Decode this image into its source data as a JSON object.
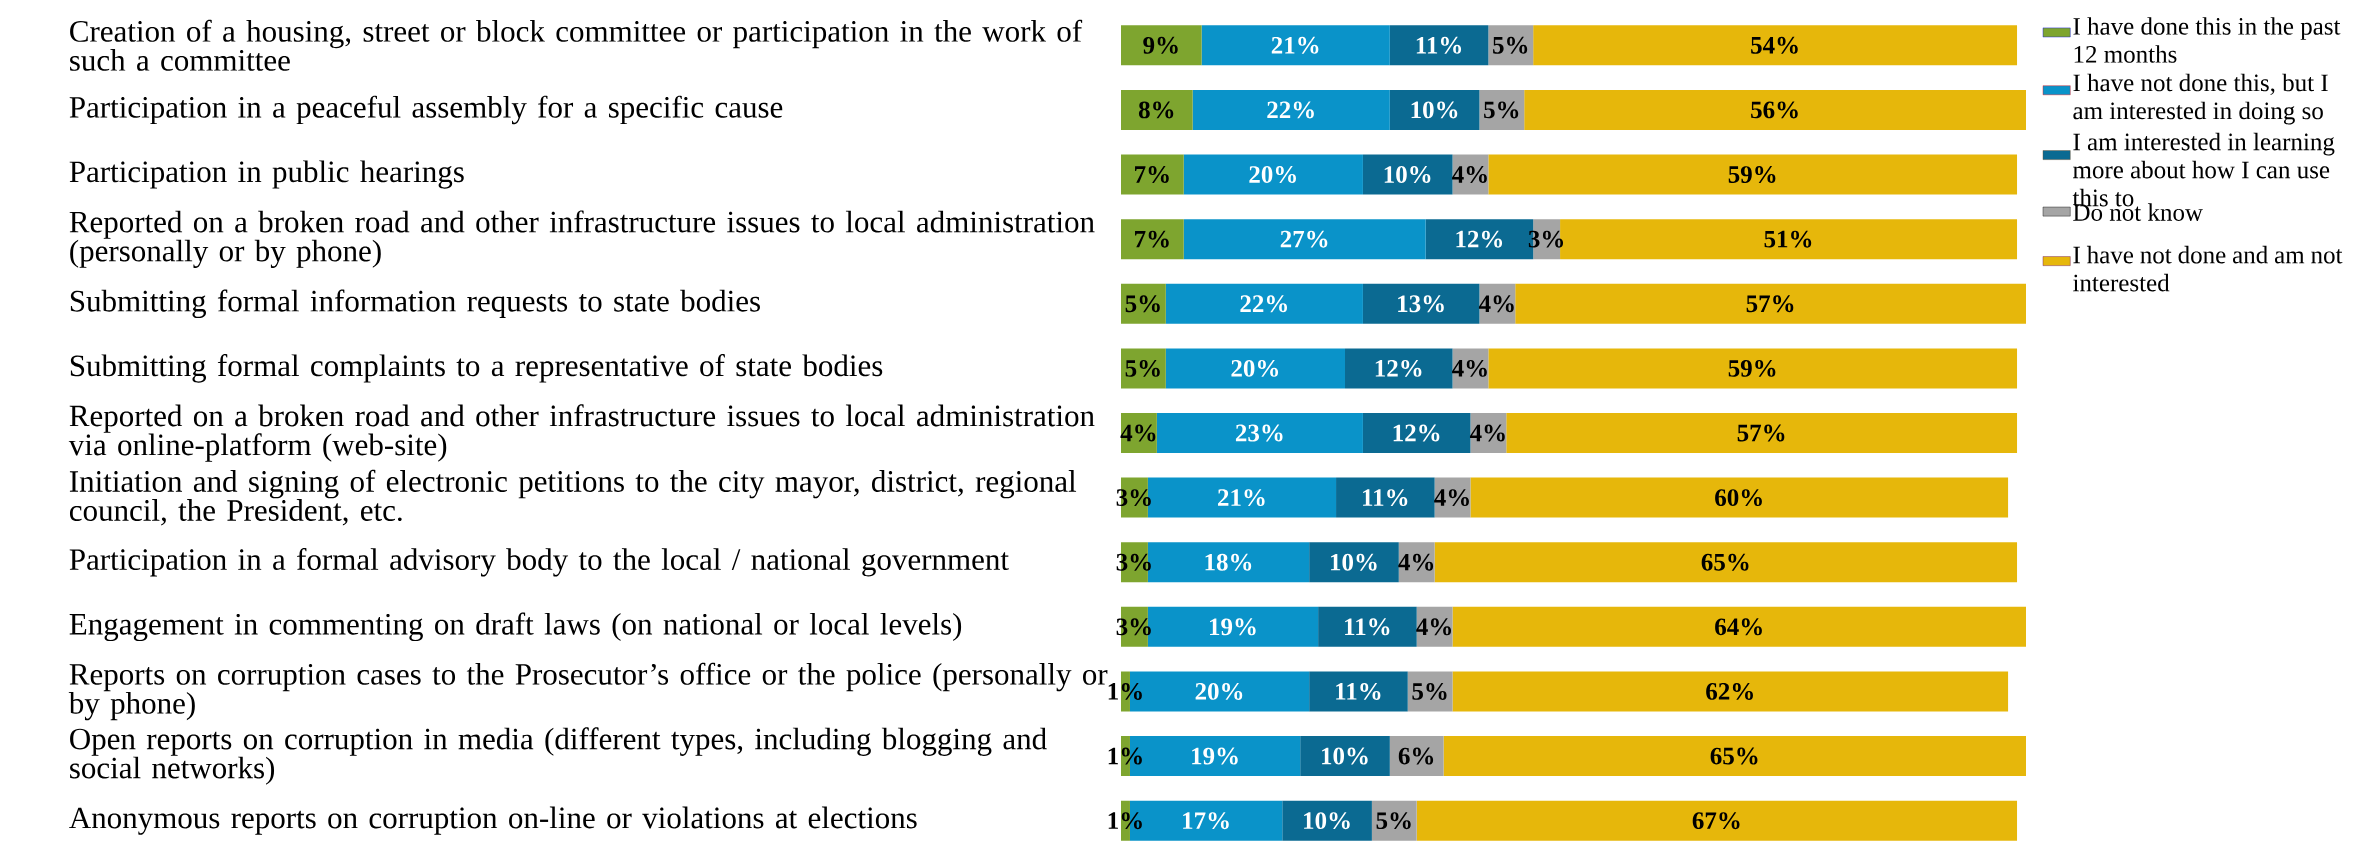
{
  "chart_data": {
    "type": "bar",
    "orientation": "horizontal",
    "stacked": true,
    "legend": "right",
    "categories": [
      "Creation of a housing, street or block committee or participation in the work of such a committee",
      "Participation in a peaceful assembly for a specific cause",
      "Participation in public hearings",
      "Reported on a broken road and other infrastructure issues to local administration (personally or by phone)",
      "Submitting formal information requests to state bodies",
      "Submitting formal complaints to a representative of state bodies",
      "Reported on a broken road and other infrastructure issues to local administration via online-platform (web-site)",
      "Initiation and signing of electronic petitions to the city mayor, district, regional council, the President, etc.",
      "Participation in a formal advisory body to the local / national government",
      "Engagement in commenting on draft laws (on national or local levels)",
      "Reports on corruption cases to the Prosecutor’s office or the police (personally or by phone)",
      "Open reports on corruption in media (different types, including blogging and social networks)",
      "Anonymous reports on corruption on-line or violations at elections"
    ],
    "series": [
      {
        "name": "I have done this in the past 12 months",
        "color": "#7ea52f",
        "values": [
          9,
          8,
          7,
          7,
          5,
          5,
          4,
          3,
          3,
          3,
          1,
          1,
          1
        ],
        "value_labels": [
          "9%",
          "8%",
          "7%",
          "7%",
          "5%",
          "5%",
          "4%",
          "3%",
          "3%",
          "3%",
          "1%",
          "1%",
          "1%"
        ]
      },
      {
        "name": "I have not done this, but I am interested in doing so",
        "color": "#0a93c9",
        "values": [
          21,
          22,
          20,
          27,
          22,
          20,
          23,
          21,
          18,
          19,
          20,
          19,
          17
        ],
        "value_labels": [
          "21%",
          "22%",
          "20%",
          "27%",
          "22%",
          "20%",
          "23%",
          "21%",
          "18%",
          "19%",
          "20%",
          "19%",
          "17%"
        ]
      },
      {
        "name": "I am interested in learning more about how I can use this to",
        "color": "#0b6a92",
        "values": [
          11,
          10,
          10,
          12,
          13,
          12,
          12,
          11,
          10,
          11,
          11,
          10,
          10
        ],
        "value_labels": [
          "11%",
          "10%",
          "10%",
          "12%",
          "13%",
          "12%",
          "12%",
          "11%",
          "10%",
          "11%",
          "11%",
          "10%",
          "10%"
        ]
      },
      {
        "name": "Do not know",
        "color": "#a5a5a5",
        "values": [
          5,
          5,
          4,
          3,
          4,
          4,
          4,
          4,
          4,
          4,
          5,
          6,
          5
        ],
        "value_labels": [
          "5%",
          "5%",
          "4%",
          "3%",
          "4%",
          "4%",
          "4%",
          "4%",
          "4%",
          "4%",
          "5%",
          "6%",
          "5%"
        ]
      },
      {
        "name": "I have not done and am not interested",
        "color": "#e6b70b",
        "values": [
          54,
          56,
          59,
          51,
          57,
          59,
          57,
          60,
          65,
          64,
          62,
          65,
          67
        ],
        "value_labels": [
          "54%",
          "56%",
          "59%",
          "51%",
          "57%",
          "59%",
          "57%",
          "60%",
          "65%",
          "64%",
          "62%",
          "65%",
          "67%"
        ]
      }
    ]
  }
}
